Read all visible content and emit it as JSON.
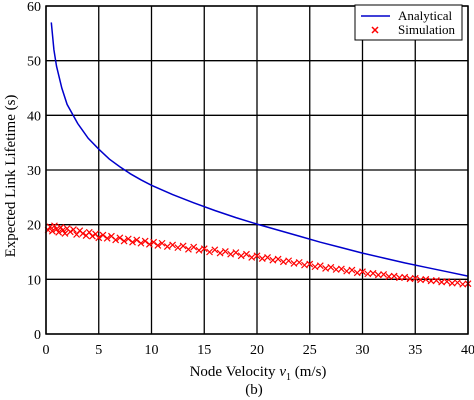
{
  "chart_data": {
    "type": "line",
    "xlabel_main": "Node Velocity ",
    "xlabel_var": "v",
    "xlabel_sub": "1",
    "xlabel_unit": " (m/s)",
    "ylabel": "Expected Link Lifetime (s)",
    "caption": "(b)",
    "xlim": [
      0,
      40
    ],
    "ylim": [
      0,
      60
    ],
    "xticks": [
      0,
      5,
      10,
      15,
      20,
      25,
      30,
      35,
      40
    ],
    "yticks": [
      0,
      10,
      20,
      30,
      40,
      50,
      60
    ],
    "xtick_labels": [
      "0",
      "5",
      "10",
      "15",
      "20",
      "25",
      "30",
      "35",
      "40"
    ],
    "ytick_labels": [
      "0",
      "10",
      "20",
      "30",
      "40",
      "50",
      "60"
    ],
    "grid": true,
    "legend_position": "top-right",
    "series": [
      {
        "name": "Analytical",
        "style": "line",
        "color": "#0000cc",
        "x": [
          0.5,
          0.75,
          1,
          1.5,
          2,
          3,
          4,
          5,
          6,
          7,
          8,
          9,
          10,
          12,
          14,
          16,
          18,
          20,
          22,
          24,
          26,
          28,
          30,
          32,
          34,
          36,
          38,
          40
        ],
        "y": [
          57,
          52,
          49,
          45,
          42,
          38.5,
          35.8,
          33.8,
          32.0,
          30.6,
          29.3,
          28.2,
          27.2,
          25.5,
          24.0,
          22.6,
          21.3,
          20.1,
          19.0,
          17.9,
          16.8,
          15.8,
          14.8,
          13.9,
          13.0,
          12.2,
          11.4,
          10.6
        ]
      },
      {
        "name": "Simulation",
        "style": "marker-x",
        "color": "#ff0000",
        "x": [
          0.2,
          0.4,
          0.6,
          0.8,
          1.0,
          1.2,
          1.4,
          1.6,
          1.8,
          2.0,
          2.3,
          2.6,
          2.9,
          3.2,
          3.5,
          3.8,
          4.1,
          4.4,
          4.7,
          5.0,
          5.4,
          5.8,
          6.2,
          6.6,
          7.0,
          7.4,
          7.8,
          8.2,
          8.6,
          9.0,
          9.4,
          9.8,
          10.2,
          10.6,
          11.0,
          11.5,
          12.0,
          12.5,
          13.0,
          13.5,
          14.0,
          14.5,
          15.0,
          15.5,
          16.0,
          16.5,
          17.0,
          17.5,
          18.0,
          18.5,
          19.0,
          19.5,
          20.0,
          20.5,
          21.0,
          21.5,
          22.0,
          22.5,
          23.0,
          23.5,
          24.0,
          24.5,
          25.0,
          25.5,
          26.0,
          26.5,
          27.0,
          27.5,
          28.0,
          28.5,
          29.0,
          29.5,
          30.0,
          30.5,
          31.0,
          31.5,
          32.0,
          32.5,
          33.0,
          33.5,
          34.0,
          34.5,
          35.0,
          35.5,
          36.0,
          36.5,
          37.0,
          37.5,
          38.0,
          38.5,
          39.0,
          39.5,
          40.0
        ],
        "y": [
          19.0,
          19.6,
          18.8,
          19.8,
          19.2,
          18.6,
          19.5,
          19.0,
          18.4,
          19.3,
          18.7,
          19.1,
          18.2,
          18.9,
          18.4,
          18.0,
          18.6,
          17.9,
          18.3,
          17.6,
          18.1,
          17.5,
          17.9,
          17.2,
          17.6,
          17.0,
          17.4,
          16.8,
          17.2,
          16.6,
          17.0,
          16.4,
          16.8,
          16.2,
          16.6,
          16.0,
          16.3,
          15.8,
          16.1,
          15.5,
          15.9,
          15.3,
          15.6,
          15.0,
          15.4,
          14.8,
          15.1,
          14.6,
          14.9,
          14.3,
          14.6,
          14.0,
          14.3,
          13.8,
          14.0,
          13.5,
          13.7,
          13.2,
          13.4,
          12.9,
          13.1,
          12.6,
          12.8,
          12.3,
          12.5,
          12.0,
          12.2,
          11.8,
          11.9,
          11.5,
          11.7,
          11.2,
          11.4,
          11.0,
          11.1,
          10.8,
          10.9,
          10.5,
          10.6,
          10.3,
          10.4,
          10.1,
          10.2,
          9.9,
          10.0,
          9.7,
          9.8,
          9.5,
          9.6,
          9.3,
          9.4,
          9.1,
          9.2
        ]
      }
    ]
  }
}
